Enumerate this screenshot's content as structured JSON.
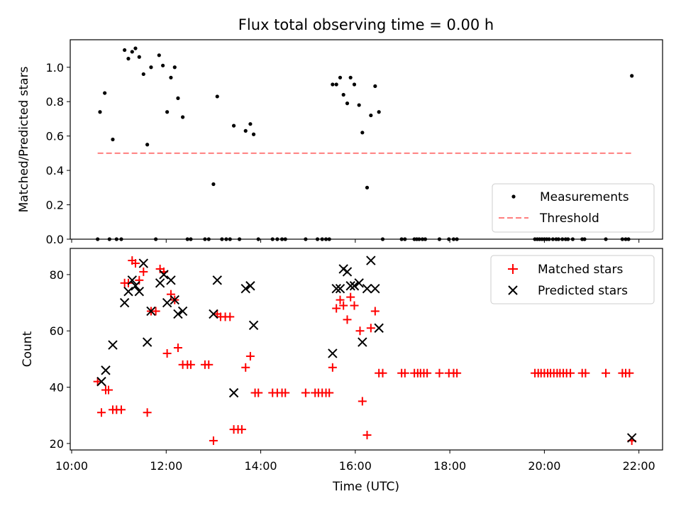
{
  "title": "Flux total observing time = 0.00 h",
  "chart_data": [
    {
      "type": "scatter",
      "panel": "top",
      "ylabel": "Matched/Predicted stars",
      "xlim": [
        9.97,
        22.5
      ],
      "ylim": [
        0,
        1.16
      ],
      "x_ticks": [
        10,
        12,
        14,
        16,
        18,
        20,
        22
      ],
      "y_ticks": [
        0.0,
        0.2,
        0.4,
        0.6,
        0.8,
        1.0
      ],
      "y_tick_labels": [
        "0.0",
        "0.2",
        "0.4",
        "0.6",
        "0.8",
        "1.0"
      ],
      "legend_position": "lower-right",
      "series": [
        {
          "name": "Measurements",
          "marker": "dot",
          "color": "#000000",
          "points": [
            [
              10.55,
              0
            ],
            [
              10.6,
              0.74
            ],
            [
              10.7,
              0.85
            ],
            [
              10.8,
              0
            ],
            [
              10.87,
              0.58
            ],
            [
              10.95,
              0
            ],
            [
              11.05,
              0
            ],
            [
              11.12,
              1.1
            ],
            [
              11.2,
              1.05
            ],
            [
              11.28,
              1.09
            ],
            [
              11.35,
              1.11
            ],
            [
              11.43,
              1.06
            ],
            [
              11.52,
              0.96
            ],
            [
              11.6,
              0.55
            ],
            [
              11.68,
              1.0
            ],
            [
              11.78,
              0
            ],
            [
              11.85,
              1.07
            ],
            [
              11.93,
              1.01
            ],
            [
              12.02,
              0.74
            ],
            [
              12.1,
              0.94
            ],
            [
              12.18,
              1.0
            ],
            [
              12.25,
              0.82
            ],
            [
              12.35,
              0.71
            ],
            [
              12.45,
              0
            ],
            [
              12.52,
              0
            ],
            [
              12.82,
              0
            ],
            [
              12.9,
              0
            ],
            [
              13.0,
              0.32
            ],
            [
              13.08,
              0.83
            ],
            [
              13.18,
              0
            ],
            [
              13.27,
              0
            ],
            [
              13.35,
              0
            ],
            [
              13.43,
              0.66
            ],
            [
              13.55,
              0
            ],
            [
              13.68,
              0.63
            ],
            [
              13.78,
              0.67
            ],
            [
              13.85,
              0.61
            ],
            [
              13.95,
              0
            ],
            [
              14.25,
              0
            ],
            [
              14.35,
              0
            ],
            [
              14.45,
              0
            ],
            [
              14.52,
              0
            ],
            [
              14.95,
              0
            ],
            [
              15.2,
              0
            ],
            [
              15.3,
              0
            ],
            [
              15.38,
              0
            ],
            [
              15.45,
              0
            ],
            [
              15.52,
              0.9
            ],
            [
              15.6,
              0.9
            ],
            [
              15.68,
              0.94
            ],
            [
              15.75,
              0.84
            ],
            [
              15.83,
              0.79
            ],
            [
              15.9,
              0.94
            ],
            [
              15.98,
              0.9
            ],
            [
              16.08,
              0.78
            ],
            [
              16.15,
              0.62
            ],
            [
              16.25,
              0.3
            ],
            [
              16.33,
              0.72
            ],
            [
              16.42,
              0.89
            ],
            [
              16.5,
              0.74
            ],
            [
              16.58,
              0
            ],
            [
              16.98,
              0
            ],
            [
              17.05,
              0
            ],
            [
              17.25,
              0
            ],
            [
              17.3,
              0
            ],
            [
              17.35,
              0
            ],
            [
              17.42,
              0
            ],
            [
              17.48,
              0
            ],
            [
              17.78,
              0
            ],
            [
              17.98,
              0
            ],
            [
              18.08,
              0
            ],
            [
              18.15,
              0
            ],
            [
              19.8,
              0
            ],
            [
              19.85,
              0
            ],
            [
              19.9,
              0
            ],
            [
              19.95,
              0
            ],
            [
              20.0,
              0
            ],
            [
              20.05,
              0
            ],
            [
              20.1,
              0
            ],
            [
              20.18,
              0
            ],
            [
              20.25,
              0
            ],
            [
              20.3,
              0
            ],
            [
              20.38,
              0
            ],
            [
              20.45,
              0
            ],
            [
              20.5,
              0
            ],
            [
              20.6,
              0
            ],
            [
              20.8,
              0
            ],
            [
              20.85,
              0
            ],
            [
              21.3,
              0
            ],
            [
              21.65,
              0
            ],
            [
              21.72,
              0
            ],
            [
              21.78,
              0
            ],
            [
              21.85,
              0.95
            ]
          ]
        },
        {
          "name": "Threshold",
          "line": "dashed",
          "color": "#ff7f7f",
          "x": [
            10.55,
            21.85
          ],
          "y": [
            0.5,
            0.5
          ]
        }
      ]
    },
    {
      "type": "scatter",
      "panel": "bottom",
      "xlabel": "Time (UTC)",
      "ylabel": "Count",
      "xlim": [
        9.97,
        22.5
      ],
      "ylim": [
        17.7,
        89.3
      ],
      "x_ticks": [
        10,
        12,
        14,
        16,
        18,
        20,
        22
      ],
      "x_tick_labels": [
        "10:00",
        "12:00",
        "14:00",
        "16:00",
        "18:00",
        "20:00",
        "22:00"
      ],
      "y_ticks": [
        20,
        40,
        60,
        80
      ],
      "y_tick_labels": [
        "20",
        "40",
        "60",
        "80"
      ],
      "legend_position": "upper-right",
      "series": [
        {
          "name": "Matched stars",
          "marker": "plus",
          "color": "#ff0000",
          "points": [
            [
              10.55,
              42
            ],
            [
              10.63,
              31
            ],
            [
              10.72,
              39
            ],
            [
              10.78,
              39
            ],
            [
              10.87,
              32
            ],
            [
              10.95,
              32
            ],
            [
              11.05,
              32
            ],
            [
              11.12,
              77
            ],
            [
              11.2,
              77
            ],
            [
              11.28,
              85
            ],
            [
              11.35,
              84
            ],
            [
              11.43,
              78
            ],
            [
              11.52,
              81
            ],
            [
              11.6,
              31
            ],
            [
              11.68,
              67
            ],
            [
              11.78,
              67
            ],
            [
              11.87,
              82
            ],
            [
              11.95,
              81
            ],
            [
              12.02,
              52
            ],
            [
              12.1,
              73
            ],
            [
              12.18,
              71
            ],
            [
              12.25,
              54
            ],
            [
              12.35,
              48
            ],
            [
              12.45,
              48
            ],
            [
              12.52,
              48
            ],
            [
              12.82,
              48
            ],
            [
              12.9,
              48
            ],
            [
              13.0,
              21
            ],
            [
              13.08,
              66
            ],
            [
              13.15,
              65
            ],
            [
              13.25,
              65
            ],
            [
              13.35,
              65
            ],
            [
              13.43,
              25
            ],
            [
              13.52,
              25
            ],
            [
              13.6,
              25
            ],
            [
              13.68,
              47
            ],
            [
              13.78,
              51
            ],
            [
              13.88,
              38
            ],
            [
              13.95,
              38
            ],
            [
              14.25,
              38
            ],
            [
              14.35,
              38
            ],
            [
              14.45,
              38
            ],
            [
              14.52,
              38
            ],
            [
              14.95,
              38
            ],
            [
              15.15,
              38
            ],
            [
              15.22,
              38
            ],
            [
              15.3,
              38
            ],
            [
              15.38,
              38
            ],
            [
              15.45,
              38
            ],
            [
              15.52,
              47
            ],
            [
              15.6,
              68
            ],
            [
              15.68,
              71
            ],
            [
              15.75,
              69
            ],
            [
              15.83,
              64
            ],
            [
              15.9,
              72
            ],
            [
              15.98,
              69
            ],
            [
              16.1,
              60
            ],
            [
              16.15,
              35
            ],
            [
              16.25,
              23
            ],
            [
              16.33,
              61
            ],
            [
              16.42,
              67
            ],
            [
              16.5,
              45
            ],
            [
              16.58,
              45
            ],
            [
              16.98,
              45
            ],
            [
              17.05,
              45
            ],
            [
              17.25,
              45
            ],
            [
              17.32,
              45
            ],
            [
              17.38,
              45
            ],
            [
              17.45,
              45
            ],
            [
              17.52,
              45
            ],
            [
              17.78,
              45
            ],
            [
              17.98,
              45
            ],
            [
              18.08,
              45
            ],
            [
              18.15,
              45
            ],
            [
              19.8,
              45
            ],
            [
              19.87,
              45
            ],
            [
              19.93,
              45
            ],
            [
              20.0,
              45
            ],
            [
              20.07,
              45
            ],
            [
              20.13,
              45
            ],
            [
              20.2,
              45
            ],
            [
              20.27,
              45
            ],
            [
              20.33,
              45
            ],
            [
              20.4,
              45
            ],
            [
              20.47,
              45
            ],
            [
              20.55,
              45
            ],
            [
              20.8,
              45
            ],
            [
              20.87,
              45
            ],
            [
              21.3,
              45
            ],
            [
              21.65,
              45
            ],
            [
              21.72,
              45
            ],
            [
              21.8,
              45
            ],
            [
              21.85,
              21
            ]
          ]
        },
        {
          "name": "Predicted stars",
          "marker": "x",
          "color": "#000000",
          "points": [
            [
              10.63,
              42
            ],
            [
              10.72,
              46
            ],
            [
              10.87,
              55
            ],
            [
              11.12,
              70
            ],
            [
              11.2,
              74
            ],
            [
              11.28,
              78
            ],
            [
              11.35,
              76
            ],
            [
              11.43,
              74
            ],
            [
              11.52,
              84
            ],
            [
              11.6,
              56
            ],
            [
              11.68,
              67
            ],
            [
              11.87,
              77
            ],
            [
              11.95,
              80
            ],
            [
              12.02,
              70
            ],
            [
              12.1,
              78
            ],
            [
              12.18,
              71
            ],
            [
              12.25,
              66
            ],
            [
              12.35,
              67
            ],
            [
              13.0,
              66
            ],
            [
              13.08,
              78
            ],
            [
              13.43,
              38
            ],
            [
              13.68,
              75
            ],
            [
              13.78,
              76
            ],
            [
              13.85,
              62
            ],
            [
              15.52,
              52
            ],
            [
              15.6,
              75
            ],
            [
              15.68,
              75
            ],
            [
              15.75,
              82
            ],
            [
              15.83,
              81
            ],
            [
              15.9,
              76
            ],
            [
              15.98,
              76
            ],
            [
              16.08,
              77
            ],
            [
              16.15,
              56
            ],
            [
              16.25,
              75
            ],
            [
              16.33,
              85
            ],
            [
              16.42,
              75
            ],
            [
              16.5,
              61
            ],
            [
              21.85,
              22
            ]
          ]
        }
      ]
    }
  ]
}
